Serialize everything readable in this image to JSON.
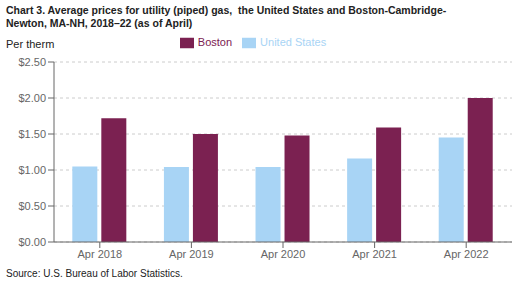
{
  "chart_data": {
    "type": "bar",
    "title": "Chart 3. Average prices for utility (piped) gas,  the United States and Boston-Cambridge-\nNewton, MA-NH, 2018–22 (as of April)",
    "ylabel": "Per therm",
    "annotations": [
      "Source: U.S. Bureau of Labor Statistics."
    ],
    "categories": [
      "Apr 2018",
      "Apr 2019",
      "Apr 2020",
      "Apr 2021",
      "Apr 2022"
    ],
    "series": [
      {
        "name": "United States",
        "color": "#a8d4f5",
        "values": [
          1.05,
          1.04,
          1.04,
          1.16,
          1.45
        ]
      },
      {
        "name": "Boston",
        "color": "#7b2151",
        "values": [
          1.72,
          1.5,
          1.48,
          1.59,
          2.0
        ]
      }
    ],
    "ylim": [
      0,
      2.5
    ],
    "yticks": [
      {
        "value": 0.0,
        "label": "$0.00"
      },
      {
        "value": 0.5,
        "label": "$0.50"
      },
      {
        "value": 1.0,
        "label": "$1.00"
      },
      {
        "value": 1.5,
        "label": "$1.50"
      },
      {
        "value": 2.0,
        "label": "$2.00"
      },
      {
        "value": 2.5,
        "label": "$2.50"
      }
    ],
    "grid": true,
    "legend": "top"
  }
}
